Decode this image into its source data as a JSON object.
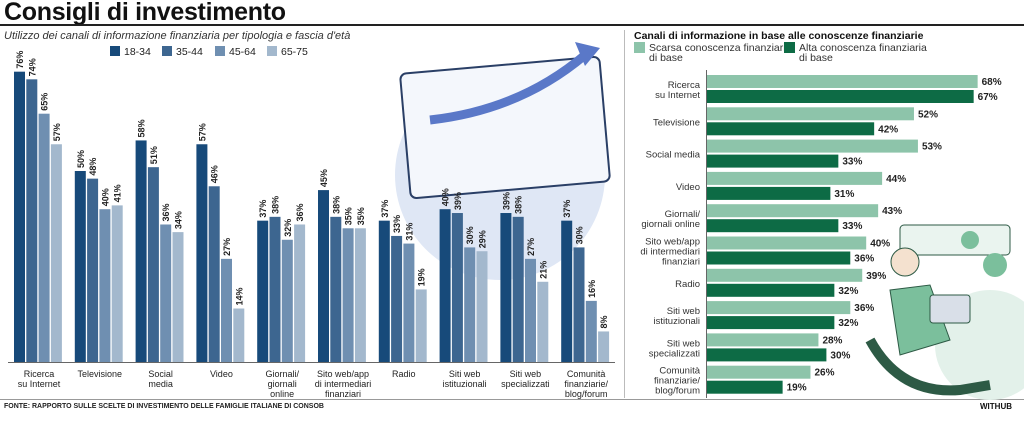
{
  "header": {
    "title": "Consigli di investimento"
  },
  "footer": {
    "source": "FONTE: RAPPORTO SULLE SCELTE DI INVESTIMENTO DELLE FAMIGLIE ITALIANE DI CONSOB",
    "brand": "WITHUB"
  },
  "chart_data": [
    {
      "type": "bar",
      "title": "Utilizzo dei canali di informazione finanziaria per tipologia e fascia d'età",
      "categories": [
        "Ricerca\nsu Internet",
        "Televisione",
        "Social\nmedia",
        "Video",
        "Giornali/\ngiornali\nonline",
        "Sito web/app\ndi intermediari\nfinanziari",
        "Radio",
        "Siti web\nistituzionali",
        "Siti web\nspecializzati",
        "Comunità\nfinanziarie/\nblog/forum"
      ],
      "series": [
        {
          "name": "18-34",
          "color": "#174a7a",
          "values": [
            76,
            50,
            58,
            57,
            37,
            45,
            37,
            40,
            39,
            37
          ]
        },
        {
          "name": "35-44",
          "color": "#3d6690",
          "values": [
            74,
            48,
            51,
            46,
            38,
            38,
            33,
            39,
            38,
            30
          ]
        },
        {
          "name": "45-64",
          "color": "#6f8fb1",
          "values": [
            65,
            40,
            36,
            27,
            32,
            35,
            31,
            30,
            27,
            16
          ]
        },
        {
          "name": "65-75",
          "color": "#a3b8cd",
          "values": [
            57,
            41,
            34,
            14,
            36,
            35,
            19,
            29,
            21,
            8
          ]
        }
      ],
      "unit": "%",
      "ylim": [
        0,
        80
      ],
      "legend": "top"
    },
    {
      "type": "bar",
      "orientation": "horizontal",
      "title": "Canali di informazione in base alle conoscenze finanziarie",
      "categories": [
        "Ricerca\nsu Internet",
        "Televisione",
        "Social media",
        "Video",
        "Giornali/\ngiornali online",
        "Sito web/app\ndi intermediari\nfinanziari",
        "Radio",
        "Siti web\nistituzionali",
        "Siti web\nspecializzati",
        "Comunità\nfinanziarie/\nblog/forum"
      ],
      "series": [
        {
          "name": "Scarsa conoscenza finanziaria\ndi base",
          "color": "#8dc4aa",
          "values": [
            68,
            52,
            53,
            44,
            43,
            40,
            39,
            36,
            28,
            26
          ]
        },
        {
          "name": "Alta conoscenza finanziaria\ndi base",
          "color": "#0d6b45",
          "values": [
            67,
            42,
            33,
            31,
            33,
            36,
            32,
            32,
            30,
            19
          ]
        }
      ],
      "unit": "%",
      "xlim": [
        0,
        70
      ],
      "legend": "top-left"
    }
  ]
}
